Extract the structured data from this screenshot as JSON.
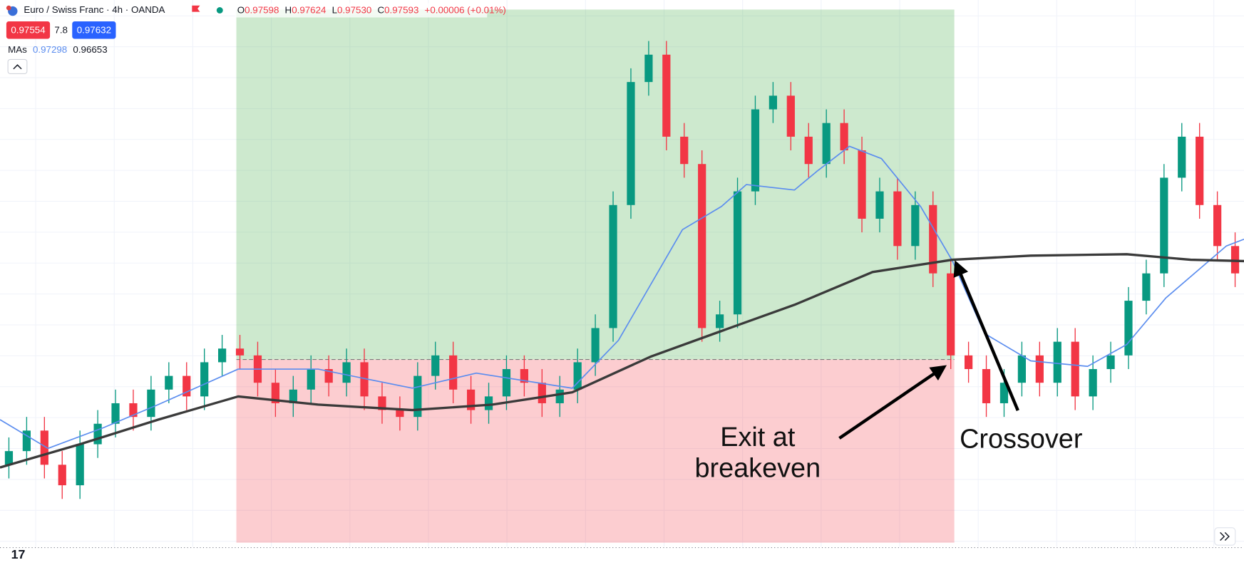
{
  "header": {
    "title": "Euro / Swiss Franc · 4h · OANDA",
    "ohlc": [
      {
        "label": "O",
        "value": "0.97598"
      },
      {
        "label": "H",
        "value": "0.97624"
      },
      {
        "label": "L",
        "value": "0.97530"
      },
      {
        "label": "C",
        "value": "0.97593"
      }
    ],
    "change": "+0.00006 (+0.01%)",
    "bid": "0.97554",
    "spread": "7.8",
    "ask": "0.97632",
    "ma_label": "MAs",
    "ma_fast_value": "0.97298",
    "ma_slow_value": "0.96653"
  },
  "chart_data": {
    "type": "candlestick",
    "xlim": [
      -0.5,
      69.5
    ],
    "ylim": [
      0.95,
      0.99
    ],
    "up_color": "#089981",
    "down_color": "#f23645",
    "open": [
      0.956,
      0.957,
      0.9585,
      0.956,
      0.9545,
      0.9575,
      0.959,
      0.9605,
      0.9595,
      0.9615,
      0.9625,
      0.961,
      0.9635,
      0.9645,
      0.964,
      0.962,
      0.9605,
      0.9615,
      0.963,
      0.962,
      0.9635,
      0.961,
      0.96,
      0.9595,
      0.9625,
      0.964,
      0.9615,
      0.96,
      0.961,
      0.963,
      0.962,
      0.9605,
      0.9615,
      0.9635,
      0.966,
      0.975,
      0.984,
      0.986,
      0.98,
      0.978,
      0.966,
      0.967,
      0.976,
      0.982,
      0.983,
      0.98,
      0.978,
      0.981,
      0.979,
      0.974,
      0.976,
      0.972,
      0.975,
      0.97,
      0.964,
      0.963,
      0.9605,
      0.962,
      0.964,
      0.962,
      0.965,
      0.961,
      0.963,
      0.964,
      0.968,
      0.97,
      0.977,
      0.98,
      0.975,
      0.972
    ],
    "high": [
      0.958,
      0.9595,
      0.9595,
      0.957,
      0.9585,
      0.96,
      0.9615,
      0.9615,
      0.9625,
      0.9635,
      0.9635,
      0.9645,
      0.9655,
      0.9655,
      0.965,
      0.963,
      0.9625,
      0.964,
      0.964,
      0.9645,
      0.9645,
      0.962,
      0.961,
      0.9635,
      0.965,
      0.965,
      0.9625,
      0.962,
      0.964,
      0.964,
      0.963,
      0.9625,
      0.9645,
      0.967,
      0.976,
      0.985,
      0.987,
      0.987,
      0.981,
      0.979,
      0.968,
      0.977,
      0.983,
      0.984,
      0.984,
      0.981,
      0.982,
      0.982,
      0.98,
      0.977,
      0.977,
      0.976,
      0.976,
      0.971,
      0.965,
      0.964,
      0.963,
      0.965,
      0.965,
      0.966,
      0.966,
      0.964,
      0.965,
      0.969,
      0.971,
      0.978,
      0.981,
      0.981,
      0.976,
      0.973
    ],
    "low": [
      0.955,
      0.956,
      0.955,
      0.9535,
      0.9535,
      0.9565,
      0.958,
      0.9585,
      0.9585,
      0.9605,
      0.96,
      0.96,
      0.9625,
      0.963,
      0.961,
      0.9595,
      0.9595,
      0.9605,
      0.961,
      0.961,
      0.96,
      0.959,
      0.9585,
      0.9585,
      0.9615,
      0.9605,
      0.959,
      0.959,
      0.96,
      0.961,
      0.9595,
      0.9595,
      0.9605,
      0.9625,
      0.965,
      0.974,
      0.983,
      0.979,
      0.977,
      0.965,
      0.965,
      0.966,
      0.975,
      0.981,
      0.979,
      0.977,
      0.977,
      0.978,
      0.973,
      0.973,
      0.971,
      0.971,
      0.969,
      0.963,
      0.962,
      0.9595,
      0.9595,
      0.961,
      0.961,
      0.961,
      0.96,
      0.96,
      0.962,
      0.963,
      0.967,
      0.969,
      0.976,
      0.974,
      0.971,
      0.969
    ],
    "close": [
      0.957,
      0.9585,
      0.956,
      0.9545,
      0.9575,
      0.959,
      0.9605,
      0.9595,
      0.9615,
      0.9625,
      0.961,
      0.9635,
      0.9645,
      0.964,
      0.962,
      0.9605,
      0.9615,
      0.963,
      0.962,
      0.9635,
      0.961,
      0.96,
      0.9595,
      0.9625,
      0.964,
      0.9615,
      0.96,
      0.961,
      0.963,
      0.962,
      0.9605,
      0.9615,
      0.9635,
      0.966,
      0.975,
      0.984,
      0.986,
      0.98,
      0.978,
      0.966,
      0.967,
      0.976,
      0.982,
      0.983,
      0.98,
      0.978,
      0.981,
      0.979,
      0.974,
      0.976,
      0.972,
      0.975,
      0.97,
      0.964,
      0.963,
      0.9605,
      0.962,
      0.964,
      0.962,
      0.965,
      0.961,
      0.963,
      0.964,
      0.968,
      0.97,
      0.977,
      0.98,
      0.975,
      0.972,
      0.97
    ],
    "ma_fast": {
      "color": "#5b8def",
      "x": [
        -0.5,
        2.2,
        5.3,
        8.4,
        12.9,
        17.4,
        22.7,
        26.3,
        31.7,
        34.3,
        37.9,
        40.1,
        41.5,
        44.2,
        45.5,
        47.3,
        49.1,
        51.3,
        53.1,
        54.9,
        57.5,
        60.7,
        62.9,
        65.1,
        68.5,
        69.5
      ],
      "values": [
        0.9593,
        0.9572,
        0.9587,
        0.9604,
        0.963,
        0.963,
        0.9616,
        0.9627,
        0.9616,
        0.9651,
        0.9732,
        0.9749,
        0.9765,
        0.9761,
        0.9775,
        0.9793,
        0.9784,
        0.9749,
        0.9709,
        0.9656,
        0.9636,
        0.9632,
        0.9648,
        0.9682,
        0.972,
        0.9725
      ]
    },
    "ma_slow": {
      "color": "#3a3a3a",
      "x": [
        -0.5,
        4.0,
        8.4,
        12.9,
        17.4,
        22.7,
        27.2,
        31.7,
        36.1,
        39.7,
        44.2,
        48.6,
        53.1,
        57.5,
        62.9,
        66.5,
        69.5
      ],
      "values": [
        0.9558,
        0.9575,
        0.9593,
        0.961,
        0.9604,
        0.96,
        0.9604,
        0.9613,
        0.9639,
        0.9656,
        0.9677,
        0.9701,
        0.971,
        0.9713,
        0.9714,
        0.971,
        0.9709
      ]
    },
    "position": {
      "entry": 0.9637,
      "target": 0.9893,
      "stop": 0.9503,
      "start": 12.8,
      "end": 53.2
    },
    "annotations": {
      "exit": [
        "Exit at",
        "breakeven"
      ],
      "crossover": "Crossover"
    }
  }
}
